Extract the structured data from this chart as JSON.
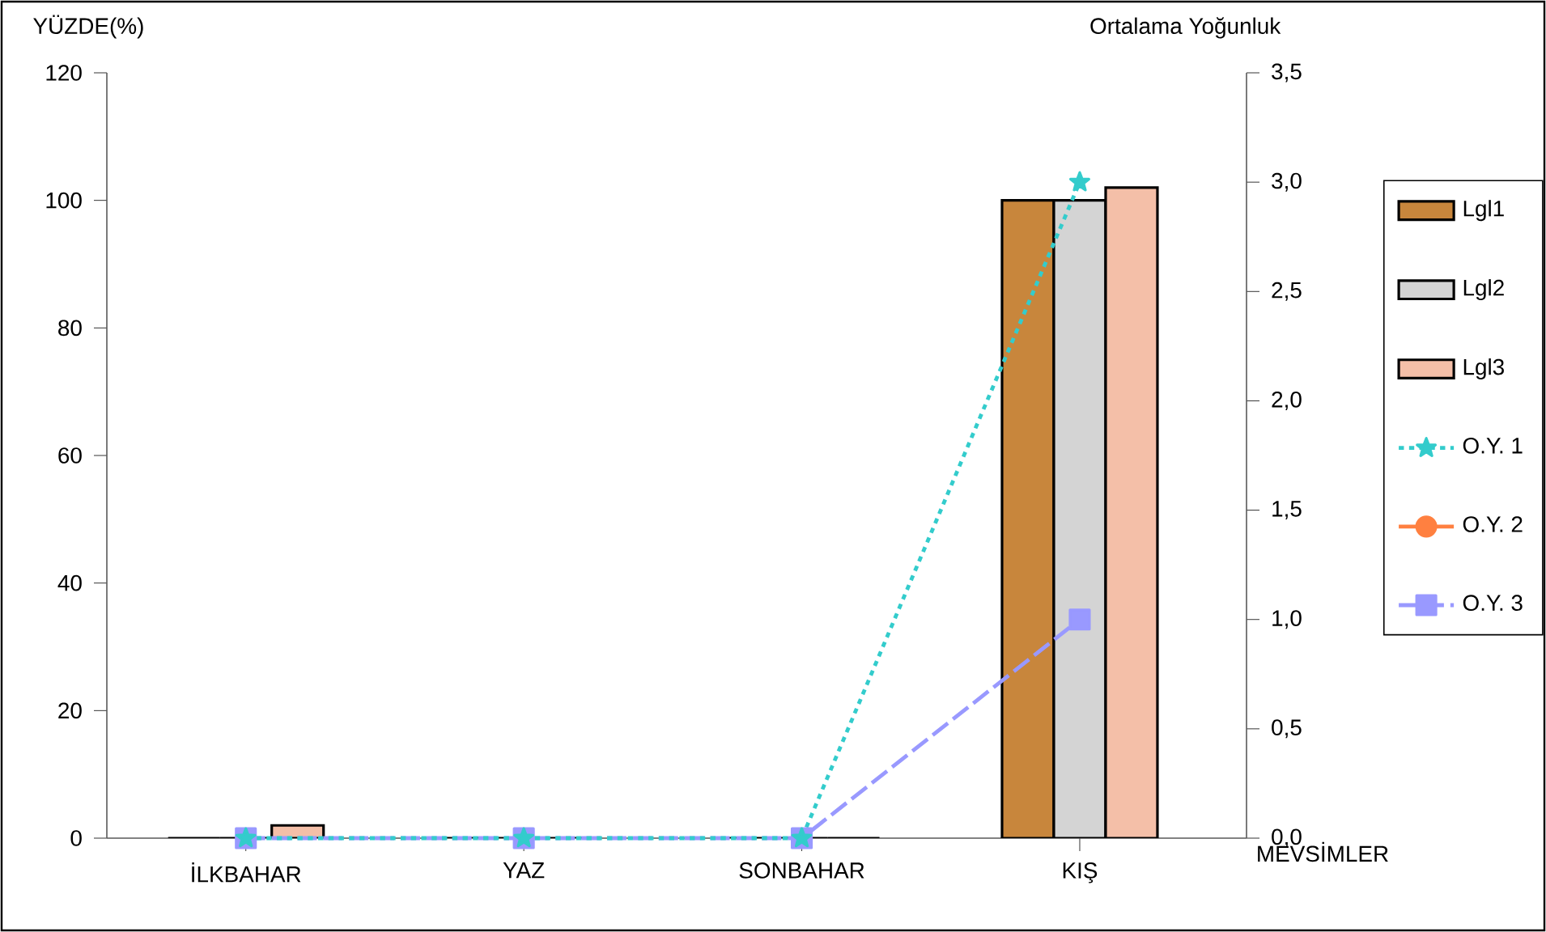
{
  "chart_data": {
    "type": "bar",
    "categories": [
      "İLKBAHAR",
      "YAZ",
      "SONBAHAR",
      "KIŞ"
    ],
    "xlabel": "MEVSİMLER",
    "ylabel": "YÜZDE(%)",
    "y2label": "Ortalama Yoğunluk",
    "ylim": [
      0,
      120
    ],
    "yticks": [
      0,
      20,
      40,
      60,
      80,
      100,
      120
    ],
    "y2lim": [
      0,
      3.5
    ],
    "y2ticks": [
      {
        "value": 0,
        "label": "0,0"
      },
      {
        "value": 0.5,
        "label": "0,5"
      },
      {
        "value": 1,
        "label": "1,0"
      },
      {
        "value": 1.5,
        "label": "1,5"
      },
      {
        "value": 2,
        "label": "2,0"
      },
      {
        "value": 2.5,
        "label": "2,5"
      },
      {
        "value": 3,
        "label": "3,0"
      },
      {
        "value": 3.5,
        "label": "3,5"
      }
    ],
    "legend": "right",
    "grid": false,
    "series": [
      {
        "name": "Lgl1",
        "color": "#c8863c",
        "values": [
          0,
          0,
          0,
          100
        ]
      },
      {
        "name": "Lgl2",
        "color": "#d4d4d4",
        "values": [
          0,
          0,
          0,
          100
        ]
      },
      {
        "name": "Lgl3",
        "color": "#f4bfa8",
        "values": [
          2,
          0,
          0,
          102
        ]
      },
      {
        "name": "O.Y. 1",
        "type": "line",
        "axis": "y2",
        "color": "#33cccc",
        "marker": "star",
        "line_style": "dotted",
        "values": [
          0,
          0,
          0,
          3.0
        ]
      },
      {
        "name": "O.Y. 2",
        "type": "line",
        "axis": "y2",
        "color": "#ff8040",
        "marker": "circle",
        "line_style": "solid",
        "values": [
          null,
          null,
          null,
          null
        ]
      },
      {
        "name": "O.Y. 3",
        "type": "line",
        "axis": "y2",
        "color": "#9999ff",
        "marker": "square",
        "line_style": "dashed",
        "values": [
          0,
          0,
          0,
          1.0
        ]
      }
    ]
  }
}
